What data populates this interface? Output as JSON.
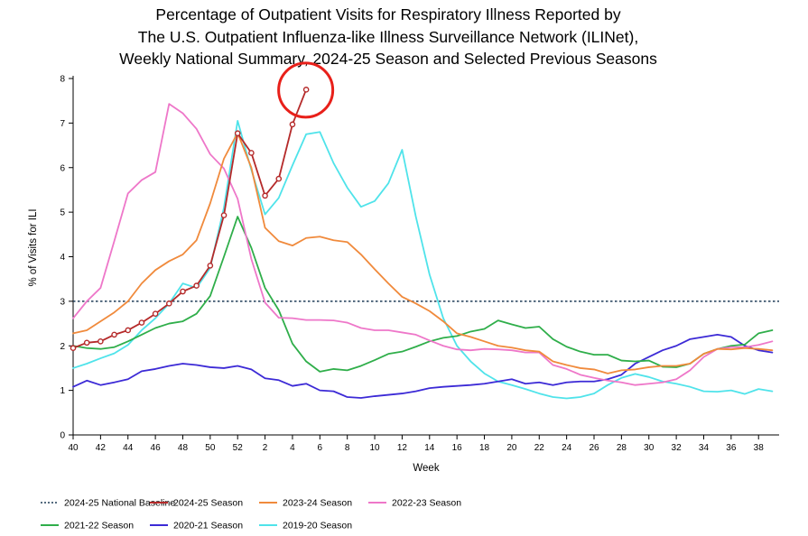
{
  "title": {
    "line1": "Percentage of Outpatient Visits for Respiratory Illness Reported by",
    "line2": "The U.S. Outpatient Influenza-like Illness Surveillance Network (ILINet),",
    "line3": "Weekly National Summary, 2024-25 Season and Selected Previous Seasons"
  },
  "chart_data": {
    "type": "line",
    "title": "Percentage of Outpatient Visits for Respiratory Illness Reported by The U.S. Outpatient Influenza-like Illness Surveillance Network (ILINet), Weekly National Summary, 2024-25 Season and Selected Previous Seasons",
    "xlabel": "Week",
    "ylabel": "% of Visits for ILI",
    "ylim": [
      0,
      8
    ],
    "yticks": [
      0,
      1,
      2,
      3,
      4,
      5,
      6,
      7,
      8
    ],
    "x_tick_labels": [
      "40",
      "42",
      "44",
      "46",
      "48",
      "50",
      "52",
      "2",
      "4",
      "6",
      "8",
      "10",
      "12",
      "14",
      "16",
      "18",
      "20",
      "22",
      "24",
      "26",
      "28",
      "30",
      "32",
      "34",
      "36",
      "38"
    ],
    "x_index_range": [
      0,
      51.5
    ],
    "baseline": {
      "name": "2024-25 National Baseline",
      "value": 3.0,
      "color": "#1f3b57"
    },
    "annotation": {
      "type": "circle",
      "label": "latest week highlighted",
      "x_index": 17,
      "y": 7.75,
      "color": "#e8201a"
    },
    "series": [
      {
        "name": "2024-25 Season",
        "color": "#b52a2a",
        "markers": true,
        "values": [
          1.95,
          2.07,
          2.1,
          2.25,
          2.35,
          2.52,
          2.72,
          2.95,
          3.22,
          3.35,
          3.8,
          4.93,
          6.77,
          6.33,
          5.37,
          5.75,
          6.97,
          7.75
        ]
      },
      {
        "name": "2023-24 Season",
        "color": "#f08a3c",
        "markers": false,
        "values": [
          2.28,
          2.35,
          2.55,
          2.75,
          3.0,
          3.4,
          3.7,
          3.9,
          4.05,
          4.37,
          5.2,
          6.2,
          6.78,
          6.0,
          4.65,
          4.35,
          4.25,
          4.42,
          4.45,
          4.37,
          4.33,
          4.05,
          3.72,
          3.4,
          3.1,
          2.95,
          2.78,
          2.55,
          2.28,
          2.2,
          2.1,
          2.0,
          1.96,
          1.9,
          1.87,
          1.65,
          1.57,
          1.5,
          1.47,
          1.38,
          1.45,
          1.47,
          1.52,
          1.55,
          1.55,
          1.6,
          1.82,
          1.93,
          1.92,
          1.95,
          1.93,
          1.9
        ]
      },
      {
        "name": "2022-23 Season",
        "color": "#ee77c9",
        "markers": false,
        "values": [
          2.62,
          3.0,
          3.3,
          4.35,
          5.42,
          5.72,
          5.9,
          7.43,
          7.22,
          6.87,
          6.3,
          5.98,
          5.3,
          3.95,
          2.97,
          2.63,
          2.62,
          2.58,
          2.58,
          2.57,
          2.52,
          2.4,
          2.35,
          2.35,
          2.3,
          2.25,
          2.12,
          2.0,
          1.92,
          1.9,
          1.93,
          1.92,
          1.9,
          1.85,
          1.85,
          1.57,
          1.48,
          1.35,
          1.28,
          1.22,
          1.18,
          1.12,
          1.15,
          1.18,
          1.25,
          1.45,
          1.75,
          1.93,
          1.97,
          1.97,
          2.02,
          2.1
        ]
      },
      {
        "name": "2021-22 Season",
        "color": "#2fae4a",
        "markers": false,
        "values": [
          2.0,
          1.95,
          1.93,
          1.97,
          2.1,
          2.25,
          2.4,
          2.5,
          2.55,
          2.72,
          3.12,
          4.0,
          4.9,
          4.2,
          3.3,
          2.8,
          2.05,
          1.65,
          1.42,
          1.48,
          1.45,
          1.55,
          1.68,
          1.82,
          1.87,
          1.98,
          2.1,
          2.18,
          2.22,
          2.32,
          2.38,
          2.57,
          2.48,
          2.4,
          2.43,
          2.15,
          1.98,
          1.87,
          1.8,
          1.8,
          1.67,
          1.65,
          1.67,
          1.53,
          1.52,
          1.6,
          1.82,
          1.93,
          2.0,
          2.03,
          2.28,
          2.35
        ]
      },
      {
        "name": "2020-21 Season",
        "color": "#3c2ad6",
        "markers": false,
        "values": [
          1.08,
          1.22,
          1.12,
          1.18,
          1.25,
          1.43,
          1.48,
          1.55,
          1.6,
          1.57,
          1.52,
          1.5,
          1.55,
          1.47,
          1.27,
          1.23,
          1.1,
          1.15,
          1.0,
          0.98,
          0.85,
          0.83,
          0.87,
          0.9,
          0.93,
          0.98,
          1.05,
          1.08,
          1.1,
          1.12,
          1.15,
          1.2,
          1.25,
          1.15,
          1.18,
          1.12,
          1.18,
          1.2,
          1.2,
          1.25,
          1.35,
          1.6,
          1.75,
          1.9,
          2.0,
          2.15,
          2.2,
          2.25,
          2.2,
          2.0,
          1.9,
          1.85
        ]
      },
      {
        "name": "2019-20 Season",
        "color": "#4fe3ea",
        "markers": false,
        "values": [
          1.5,
          1.6,
          1.72,
          1.83,
          2.02,
          2.35,
          2.62,
          2.95,
          3.4,
          3.3,
          3.75,
          5.1,
          7.05,
          5.95,
          4.95,
          5.32,
          6.05,
          6.75,
          6.8,
          6.1,
          5.55,
          5.12,
          5.25,
          5.65,
          6.4,
          4.9,
          3.6,
          2.62,
          2.0,
          1.65,
          1.38,
          1.2,
          1.12,
          1.03,
          0.93,
          0.85,
          0.82,
          0.85,
          0.93,
          1.12,
          1.28,
          1.37,
          1.3,
          1.2,
          1.15,
          1.08,
          0.98,
          0.97,
          1.0,
          0.92,
          1.03,
          0.98
        ]
      }
    ],
    "legend": {
      "placement": "bottom",
      "rows": [
        [
          "2024-25 National Baseline",
          "2024-25 Season",
          "2023-24 Season",
          "2022-23 Season"
        ],
        [
          "2021-22 Season",
          "2020-21 Season",
          "2019-20 Season"
        ]
      ]
    }
  }
}
